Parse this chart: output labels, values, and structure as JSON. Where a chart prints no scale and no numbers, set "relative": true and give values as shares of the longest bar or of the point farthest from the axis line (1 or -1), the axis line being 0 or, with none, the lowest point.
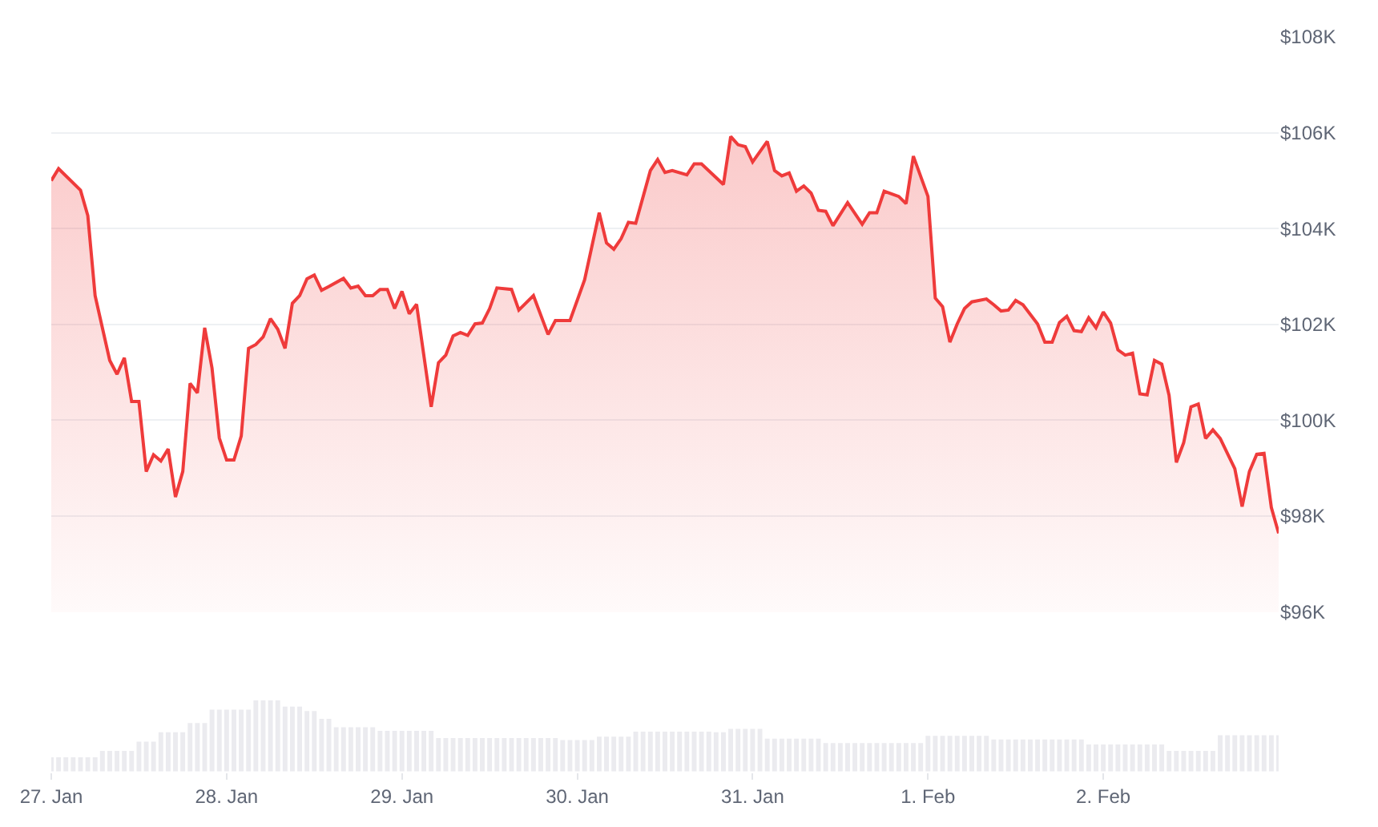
{
  "chart_data": [
    {
      "type": "area",
      "color": "#ef3b3b",
      "grid": "y",
      "tick_labels": "y",
      "line_style": "solid",
      "xlim": [
        "--01-27T00:00",
        "--02-03T00:00"
      ],
      "ylim": [
        96,
        108
      ],
      "yticks": [
        {
          "value": 96,
          "label": "$96K"
        },
        {
          "value": 98,
          "label": "$98K"
        },
        {
          "value": 100,
          "label": "$100K"
        },
        {
          "value": 102,
          "label": "$102K"
        },
        {
          "value": 104,
          "label": "$104K"
        },
        {
          "value": 106,
          "label": "$106K"
        },
        {
          "value": 108,
          "label": "$108K"
        }
      ],
      "x": [
        "--01-27T00:00",
        "--01-27T01:00",
        "--01-27T04:00",
        "--01-27T05:00",
        "--01-27T06:00",
        "--01-27T08:00",
        "--01-27T09:00",
        "--01-27T10:00",
        "--01-27T11:00",
        "--01-27T12:00",
        "--01-27T13:00",
        "--01-27T14:00",
        "--01-27T15:00",
        "--01-27T16:00",
        "--01-27T17:00",
        "--01-27T18:00",
        "--01-27T19:00",
        "--01-27T20:00",
        "--01-27T21:00",
        "--01-27T22:00",
        "--01-27T23:00",
        "--01-28T00:00",
        "--01-28T01:00",
        "--01-28T02:00",
        "--01-28T03:00",
        "--01-28T04:00",
        "--01-28T05:00",
        "--01-28T06:00",
        "--01-28T07:00",
        "--01-28T08:00",
        "--01-28T09:00",
        "--01-28T10:00",
        "--01-28T11:00",
        "--01-28T12:00",
        "--01-28T13:00",
        "--01-28T14:00",
        "--01-28T16:00",
        "--01-28T17:00",
        "--01-28T18:00",
        "--01-28T19:00",
        "--01-28T20:00",
        "--01-28T21:00",
        "--01-28T22:00",
        "--01-28T23:00",
        "--01-29T00:00",
        "--01-29T01:00",
        "--01-29T02:00",
        "--01-29T04:00",
        "--01-29T05:00",
        "--01-29T06:00",
        "--01-29T07:00",
        "--01-29T08:00",
        "--01-29T09:00",
        "--01-29T10:00",
        "--01-29T11:00",
        "--01-29T12:00",
        "--01-29T13:00",
        "--01-29T15:00",
        "--01-29T16:00",
        "--01-29T18:00",
        "--01-29T20:00",
        "--01-29T21:00",
        "--01-29T23:00",
        "--01-30T01:00",
        "--01-30T03:00",
        "--01-30T04:00",
        "--01-30T05:00",
        "--01-30T06:00",
        "--01-30T07:00",
        "--01-30T08:00",
        "--01-30T10:00",
        "--01-30T11:00",
        "--01-30T12:00",
        "--01-30T13:00",
        "--01-30T15:00",
        "--01-30T16:00",
        "--01-30T17:00",
        "--01-30T20:00",
        "--01-30T21:00",
        "--01-30T22:00",
        "--01-30T23:00",
        "--01-31T00:00",
        "--01-31T02:00",
        "--01-31T03:00",
        "--01-31T04:00",
        "--01-31T05:00",
        "--01-31T06:00",
        "--01-31T07:00",
        "--01-31T08:00",
        "--01-31T09:00",
        "--01-31T10:00",
        "--01-31T11:00",
        "--01-31T13:00",
        "--01-31T15:00",
        "--01-31T16:00",
        "--01-31T17:00",
        "--01-31T18:00",
        "--01-31T20:00",
        "--01-31T21:00",
        "--01-31T22:00",
        "--02-01T00:00",
        "--02-01T01:00",
        "--02-01T02:00",
        "--02-01T03:00",
        "--02-01T04:00",
        "--02-01T05:00",
        "--02-01T06:00",
        "--02-01T08:00",
        "--02-01T09:00",
        "--02-01T10:00",
        "--02-01T11:00",
        "--02-01T12:00",
        "--02-01T13:00",
        "--02-01T15:00",
        "--02-01T16:00",
        "--02-01T17:00",
        "--02-01T18:00",
        "--02-01T19:00",
        "--02-01T20:00",
        "--02-01T21:00",
        "--02-01T22:00",
        "--02-01T23:00",
        "--02-02T00:00",
        "--02-02T01:00",
        "--02-02T02:00",
        "--02-02T03:00",
        "--02-02T04:00",
        "--02-02T05:00",
        "--02-02T06:00",
        "--02-02T07:00",
        "--02-02T08:00",
        "--02-02T09:00",
        "--02-02T10:00",
        "--02-02T11:00",
        "--02-02T12:00",
        "--02-02T13:00",
        "--02-02T14:00",
        "--02-02T15:00",
        "--02-02T16:00",
        "--02-02T18:00",
        "--02-02T19:00",
        "--02-02T20:00",
        "--02-02T21:00",
        "--02-02T22:00",
        "--02-02T23:00",
        "--02-03T00:00"
      ],
      "values": [
        105.0,
        105.25,
        104.8,
        104.27,
        102.6,
        101.25,
        100.96,
        101.3,
        100.39,
        100.39,
        98.93,
        99.28,
        99.15,
        99.4,
        98.4,
        98.93,
        100.77,
        100.57,
        101.93,
        101.09,
        99.63,
        99.17,
        99.17,
        99.67,
        101.5,
        101.58,
        101.74,
        102.12,
        101.9,
        101.5,
        102.44,
        102.6,
        102.95,
        103.03,
        102.71,
        102.79,
        102.96,
        102.76,
        102.8,
        102.6,
        102.6,
        102.73,
        102.73,
        102.33,
        102.69,
        102.22,
        102.42,
        100.28,
        101.2,
        101.36,
        101.76,
        101.83,
        101.77,
        102.01,
        102.03,
        102.33,
        102.76,
        102.73,
        102.3,
        102.6,
        101.79,
        102.08,
        102.08,
        102.93,
        104.33,
        103.7,
        103.57,
        103.79,
        104.13,
        104.11,
        105.21,
        105.44,
        105.17,
        105.21,
        105.12,
        105.35,
        105.35,
        104.92,
        105.92,
        105.75,
        105.71,
        105.39,
        105.82,
        105.21,
        105.1,
        105.16,
        104.78,
        104.89,
        104.74,
        104.38,
        104.36,
        104.06,
        104.54,
        104.09,
        104.33,
        104.33,
        104.78,
        104.67,
        104.52,
        105.51,
        104.67,
        102.55,
        102.37,
        101.63,
        102.01,
        102.33,
        102.47,
        102.53,
        102.41,
        102.28,
        102.3,
        102.5,
        102.41,
        102.01,
        101.63,
        101.63,
        102.04,
        102.17,
        101.87,
        101.85,
        102.14,
        101.93,
        102.26,
        102.03,
        101.47,
        101.36,
        101.4,
        100.55,
        100.53,
        101.25,
        101.17,
        100.52,
        99.12,
        99.53,
        100.28,
        100.34,
        99.62,
        99.8,
        99.62,
        98.99,
        98.2,
        98.93,
        99.29,
        99.31,
        98.18,
        97.64
      ]
    },
    {
      "type": "bar",
      "relative": true,
      "color": "#ebebef",
      "tick_labels": "x",
      "xlim": [
        "--01-27T00:00",
        "--02-03T00:00"
      ],
      "xticks": [
        {
          "value": "--01-27",
          "label": "27. Jan"
        },
        {
          "value": "--01-28",
          "label": "28. Jan"
        },
        {
          "value": "--01-29",
          "label": "29. Jan"
        },
        {
          "value": "--01-30",
          "label": "30. Jan"
        },
        {
          "value": "--01-31",
          "label": "31. Jan"
        },
        {
          "value": "--02-01",
          "label": "1. Feb"
        },
        {
          "value": "--02-02",
          "label": "2. Feb"
        }
      ],
      "x": [
        "--01-27T00:00",
        "--01-27T01:00",
        "--01-27T02:00",
        "--01-27T03:00",
        "--01-27T04:00",
        "--01-27T05:00",
        "--01-27T06:00",
        "--01-27T07:00",
        "--01-27T08:00",
        "--01-27T09:00",
        "--01-27T10:00",
        "--01-27T11:00",
        "--01-27T12:00",
        "--01-27T13:00",
        "--01-27T14:00",
        "--01-27T15:00",
        "--01-27T16:00",
        "--01-27T17:00",
        "--01-27T18:00",
        "--01-27T19:00",
        "--01-27T20:00",
        "--01-27T21:00",
        "--01-27T22:00",
        "--01-27T23:00",
        "--01-28T00:00",
        "--01-28T01:00",
        "--01-28T02:00",
        "--01-28T03:00",
        "--01-28T04:00",
        "--01-28T05:00",
        "--01-28T06:00",
        "--01-28T07:00",
        "--01-28T08:00",
        "--01-28T09:00",
        "--01-28T10:00",
        "--01-28T11:00",
        "--01-28T12:00",
        "--01-28T13:00",
        "--01-28T14:00",
        "--01-28T15:00",
        "--01-28T16:00",
        "--01-28T17:00",
        "--01-28T18:00",
        "--01-28T19:00",
        "--01-28T20:00",
        "--01-28T21:00",
        "--01-28T22:00",
        "--01-28T23:00",
        "--01-29T00:00",
        "--01-29T01:00",
        "--01-29T02:00",
        "--01-29T03:00",
        "--01-29T04:00",
        "--01-29T05:00",
        "--01-29T06:00",
        "--01-29T07:00",
        "--01-29T08:00",
        "--01-29T09:00",
        "--01-29T10:00",
        "--01-29T11:00",
        "--01-29T12:00",
        "--01-29T13:00",
        "--01-29T14:00",
        "--01-29T15:00",
        "--01-29T16:00",
        "--01-29T17:00",
        "--01-29T18:00",
        "--01-29T19:00",
        "--01-29T20:00",
        "--01-29T21:00",
        "--01-29T22:00",
        "--01-29T23:00",
        "--01-30T00:00",
        "--01-30T01:00",
        "--01-30T02:00",
        "--01-30T03:00",
        "--01-30T04:00",
        "--01-30T05:00",
        "--01-30T06:00",
        "--01-30T07:00",
        "--01-30T08:00",
        "--01-30T09:00",
        "--01-30T10:00",
        "--01-30T11:00",
        "--01-30T12:00",
        "--01-30T13:00",
        "--01-30T14:00",
        "--01-30T15:00",
        "--01-30T16:00",
        "--01-30T17:00",
        "--01-30T18:00",
        "--01-30T19:00",
        "--01-30T20:00",
        "--01-30T21:00",
        "--01-30T22:00",
        "--01-30T23:00",
        "--01-31T00:00",
        "--01-31T01:00",
        "--01-31T02:00",
        "--01-31T03:00",
        "--01-31T04:00",
        "--01-31T05:00",
        "--01-31T06:00",
        "--01-31T07:00",
        "--01-31T08:00",
        "--01-31T09:00",
        "--01-31T10:00",
        "--01-31T11:00",
        "--01-31T12:00",
        "--01-31T13:00",
        "--01-31T14:00",
        "--01-31T15:00",
        "--01-31T16:00",
        "--01-31T17:00",
        "--01-31T18:00",
        "--01-31T19:00",
        "--01-31T20:00",
        "--01-31T21:00",
        "--01-31T22:00",
        "--01-31T23:00",
        "--02-01T00:00",
        "--02-01T01:00",
        "--02-01T02:00",
        "--02-01T03:00",
        "--02-01T04:00",
        "--02-01T05:00",
        "--02-01T06:00",
        "--02-01T07:00",
        "--02-01T08:00",
        "--02-01T09:00",
        "--02-01T10:00",
        "--02-01T11:00",
        "--02-01T12:00",
        "--02-01T13:00",
        "--02-01T14:00",
        "--02-01T15:00",
        "--02-01T16:00",
        "--02-01T17:00",
        "--02-01T18:00",
        "--02-01T19:00",
        "--02-01T20:00",
        "--02-01T21:00",
        "--02-01T22:00",
        "--02-01T23:00",
        "--02-02T00:00",
        "--02-02T01:00",
        "--02-02T02:00",
        "--02-02T03:00",
        "--02-02T04:00",
        "--02-02T05:00",
        "--02-02T06:00",
        "--02-02T07:00",
        "--02-02T08:00",
        "--02-02T09:00",
        "--02-02T10:00",
        "--02-02T11:00",
        "--02-02T12:00",
        "--02-02T13:00",
        "--02-02T14:00",
        "--02-02T15:00",
        "--02-02T16:00",
        "--02-02T17:00",
        "--02-02T18:00",
        "--02-02T19:00",
        "--02-02T20:00",
        "--02-02T21:00",
        "--02-02T22:00",
        "--02-02T23:00",
        "--02-03T00:00"
      ],
      "values": [
        0.2,
        0.2,
        0.2,
        0.2,
        0.2,
        0.2,
        0.2,
        0.29,
        0.29,
        0.29,
        0.29,
        0.29,
        0.42,
        0.42,
        0.42,
        0.55,
        0.55,
        0.55,
        0.55,
        0.68,
        0.68,
        0.68,
        0.87,
        0.87,
        0.87,
        0.87,
        0.87,
        0.87,
        1.0,
        1.0,
        1.0,
        1.0,
        0.91,
        0.91,
        0.91,
        0.85,
        0.85,
        0.74,
        0.74,
        0.62,
        0.62,
        0.62,
        0.62,
        0.62,
        0.62,
        0.57,
        0.57,
        0.57,
        0.57,
        0.57,
        0.57,
        0.57,
        0.57,
        0.47,
        0.47,
        0.47,
        0.47,
        0.47,
        0.47,
        0.47,
        0.47,
        0.47,
        0.47,
        0.47,
        0.47,
        0.47,
        0.47,
        0.47,
        0.47,
        0.47,
        0.44,
        0.44,
        0.44,
        0.44,
        0.44,
        0.49,
        0.49,
        0.49,
        0.49,
        0.49,
        0.56,
        0.56,
        0.56,
        0.56,
        0.56,
        0.56,
        0.56,
        0.56,
        0.56,
        0.56,
        0.56,
        0.55,
        0.55,
        0.6,
        0.6,
        0.6,
        0.6,
        0.6,
        0.46,
        0.46,
        0.46,
        0.46,
        0.46,
        0.46,
        0.46,
        0.46,
        0.4,
        0.4,
        0.4,
        0.4,
        0.4,
        0.4,
        0.4,
        0.4,
        0.4,
        0.4,
        0.4,
        0.4,
        0.4,
        0.4,
        0.5,
        0.5,
        0.5,
        0.5,
        0.5,
        0.5,
        0.5,
        0.5,
        0.5,
        0.45,
        0.45,
        0.45,
        0.45,
        0.45,
        0.45,
        0.45,
        0.45,
        0.45,
        0.45,
        0.45,
        0.45,
        0.45,
        0.38,
        0.38,
        0.38,
        0.38,
        0.38,
        0.38,
        0.38,
        0.38,
        0.38,
        0.38,
        0.38,
        0.29,
        0.29,
        0.29,
        0.29,
        0.29,
        0.29,
        0.29,
        0.51,
        0.51,
        0.51,
        0.51,
        0.51,
        0.51,
        0.51,
        0.51,
        0.51
      ]
    }
  ]
}
